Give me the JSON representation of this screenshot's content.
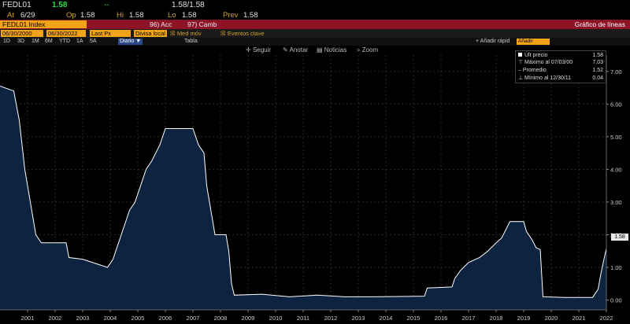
{
  "quote": {
    "ticker": "FEDL01",
    "last": "1.58",
    "change": "--",
    "bid_ask": "1.58/1.58"
  },
  "ohlc": {
    "at_label": "At",
    "at_value": "6/29",
    "op_label": "Op",
    "op_value": "1.58",
    "hi_label": "Hi",
    "hi_value": "1.58",
    "lo_label": "Lo",
    "lo_value": "1.58",
    "prev_label": "Prev",
    "prev_value": "1.58"
  },
  "toolbar": {
    "ticker_input": "FEDL01 Index",
    "acc_label": "96) Acc",
    "camb_label": "97) Camb",
    "chart_title": "Gráfico de líneas"
  },
  "params": {
    "start_date": "06/30/2000",
    "end_date": "06/30/2022",
    "field": "Last Px",
    "currency": "Divisa local",
    "med_mov": "Med móv",
    "eventos": "Eventos clave"
  },
  "periods": {
    "items": [
      "1D",
      "3D",
      "1M",
      "6M",
      "YTD",
      "1A",
      "5A",
      "Diario ▼"
    ],
    "right_items": [
      "Tabla"
    ],
    "add_label": "+ Añadir rápid",
    "add_field": "Añadir campo"
  },
  "chart_toolbar": {
    "follow": "Seguir",
    "annotate": "Anotar",
    "news": "Noticias",
    "zoom": "Zoom"
  },
  "legend": {
    "last_label": "Últ precio",
    "last_value": "1.58",
    "max_label": "Máximo al 07/03/00",
    "max_value": "7.03",
    "avg_label": "Promedio",
    "avg_value": "1.52",
    "min_label": "Mínimo al 12/30/11",
    "min_value": "0.04"
  },
  "last_tag": "1.58",
  "colors": {
    "area_fill": "#0d2340",
    "line": "#ffffff",
    "accent_orange": "#f2a31a",
    "header_red": "#8c1426",
    "green": "#2bd94a"
  },
  "chart_data": {
    "type": "area",
    "x": [
      2000.5,
      2001.0,
      2001.2,
      2001.4,
      2001.6,
      2001.8,
      2002.0,
      2002.9,
      2003.0,
      2003.5,
      2004.4,
      2004.6,
      2004.8,
      2005.0,
      2005.2,
      2005.4,
      2005.6,
      2005.8,
      2006.0,
      2006.3,
      2006.5,
      2007.0,
      2007.5,
      2007.7,
      2007.9,
      2008.0,
      2008.1,
      2008.3,
      2008.7,
      2008.8,
      2008.9,
      2009.0,
      2010.0,
      2011.0,
      2012.0,
      2013.0,
      2014.0,
      2015.9,
      2016.0,
      2016.9,
      2017.0,
      2017.2,
      2017.5,
      2017.9,
      2018.2,
      2018.5,
      2018.7,
      2019.0,
      2019.5,
      2019.6,
      2019.8,
      2019.95,
      2020.1,
      2020.2,
      2021.0,
      2022.0,
      2022.2,
      2022.3,
      2022.4,
      2022.5
    ],
    "y": [
      6.55,
      6.4,
      5.5,
      4.0,
      3.0,
      2.0,
      1.75,
      1.75,
      1.3,
      1.25,
      1.0,
      1.25,
      1.75,
      2.25,
      2.75,
      3.0,
      3.5,
      4.0,
      4.25,
      4.75,
      5.25,
      5.25,
      5.25,
      4.75,
      4.5,
      3.5,
      3.0,
      2.0,
      2.0,
      1.5,
      0.5,
      0.15,
      0.18,
      0.1,
      0.15,
      0.1,
      0.1,
      0.12,
      0.37,
      0.4,
      0.66,
      0.9,
      1.15,
      1.3,
      1.5,
      1.75,
      1.9,
      2.4,
      2.4,
      2.1,
      1.85,
      1.6,
      1.55,
      0.1,
      0.08,
      0.08,
      0.33,
      0.8,
      1.2,
      1.58
    ],
    "ylim": [
      -0.3,
      7.5
    ],
    "xlim": [
      2000.5,
      2022.5
    ],
    "yticks": [
      "0.00",
      "1.00",
      "2.00",
      "3.00",
      "4.00",
      "5.00",
      "6.00",
      "7.00"
    ],
    "xticks": [
      "2001",
      "2002",
      "2003",
      "2004",
      "2005",
      "2006",
      "2007",
      "2008",
      "2009",
      "2010",
      "2011",
      "2012",
      "2013",
      "2014",
      "2015",
      "2016",
      "2017",
      "2018",
      "2019",
      "2020",
      "2021",
      "2022"
    ],
    "grid": true
  }
}
